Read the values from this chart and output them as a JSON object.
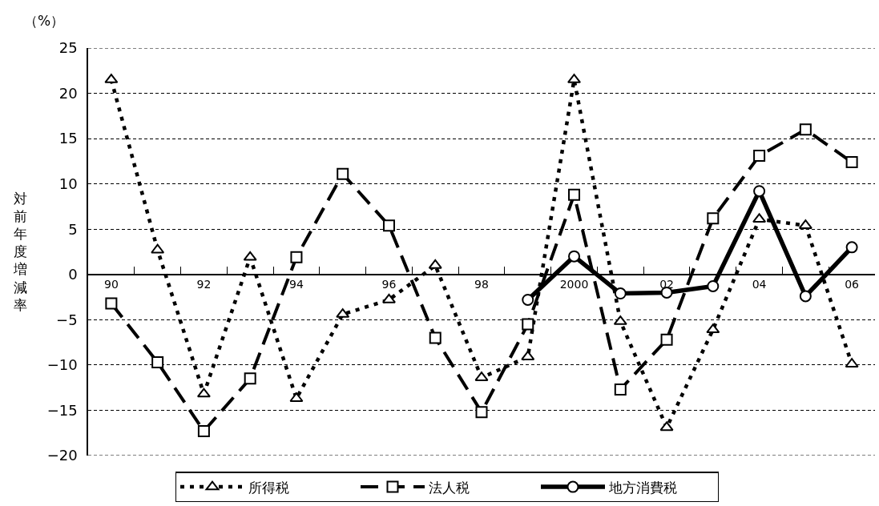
{
  "chart_data": {
    "type": "line",
    "ylabel": "対前年度増減率",
    "annotations": [
      "（%）"
    ],
    "categories": [
      "90",
      null,
      "92",
      null,
      "94",
      null,
      "96",
      null,
      "98",
      null,
      "2000",
      null,
      "02",
      null,
      "04",
      null,
      "06"
    ],
    "ylim": [
      -20,
      25
    ],
    "yticks": [
      -20,
      -15,
      -10,
      -5,
      0,
      5,
      10,
      15,
      20,
      25
    ],
    "grid": "y",
    "legend": "bottom",
    "series": [
      {
        "name": "所得税",
        "color": "#000000",
        "marker": "triangle",
        "line_style": "dotted",
        "values": [
          21.5,
          2.7,
          -13.2,
          1.9,
          -13.7,
          -4.4,
          -2.8,
          1.0,
          -11.4,
          -9.1,
          21.5,
          -5.2,
          -16.9,
          -6.1,
          6.1,
          5.4,
          -9.9
        ]
      },
      {
        "name": "法人税",
        "color": "#000000",
        "marker": "square",
        "line_style": "dashed",
        "values": [
          -3.2,
          -9.7,
          -17.3,
          -11.5,
          1.9,
          11.1,
          5.4,
          -7.0,
          -15.2,
          -5.5,
          8.8,
          -12.7,
          -7.2,
          6.2,
          13.1,
          16.0,
          12.4
        ]
      },
      {
        "name": "地方消費税",
        "color": "#000000",
        "marker": "circle",
        "line_style": "solid",
        "values": [
          null,
          null,
          null,
          null,
          null,
          null,
          null,
          null,
          null,
          -2.8,
          2.0,
          -2.1,
          -2.0,
          -1.3,
          9.2,
          -2.4,
          3.0
        ]
      }
    ]
  }
}
